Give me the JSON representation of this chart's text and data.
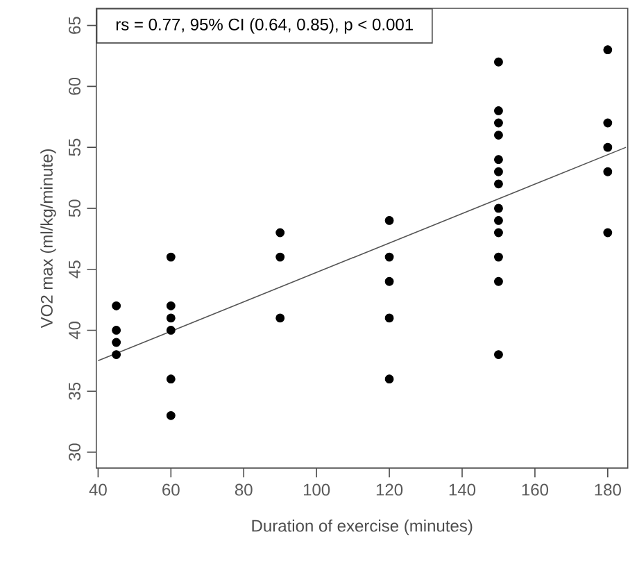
{
  "chart_data": {
    "type": "scatter",
    "xlabel": "Duration of exercise (minutes)",
    "ylabel": "VO2 max (ml/kg/minute)",
    "annotations": [
      "rs = 0.77, 95% CI (0.64, 0.85), p < 0.001"
    ],
    "series": [
      {
        "color": "#000000",
        "marker": "circle",
        "x": [
          45,
          45,
          45,
          45,
          60,
          60,
          60,
          60,
          60,
          60,
          90,
          90,
          90,
          120,
          120,
          120,
          120,
          120,
          150,
          150,
          150,
          150,
          150,
          150,
          150,
          150,
          150,
          150,
          150,
          150,
          150,
          180,
          180,
          180,
          180,
          180
        ],
        "values": [
          42,
          40,
          39,
          38,
          46,
          42,
          41,
          40,
          36,
          33,
          48,
          46,
          41,
          49,
          46,
          44,
          41,
          36,
          62,
          58,
          57,
          56,
          54,
          53,
          52,
          50,
          49,
          48,
          46,
          44,
          38,
          63,
          57,
          55,
          53,
          48
        ]
      },
      {
        "type": "line",
        "color": "#555555",
        "marker": "none",
        "line_style": "solid",
        "x": [
          40,
          185
        ],
        "values": [
          37.5,
          55.0
        ]
      }
    ],
    "xlim": [
      39.5,
      185.5
    ],
    "ylim": [
      28.7,
      66.4
    ],
    "xticks": [
      40,
      60,
      80,
      100,
      120,
      140,
      160,
      180
    ],
    "yticks": [
      30,
      35,
      40,
      45,
      50,
      55,
      60,
      65
    ],
    "grid": false,
    "legend": false
  }
}
